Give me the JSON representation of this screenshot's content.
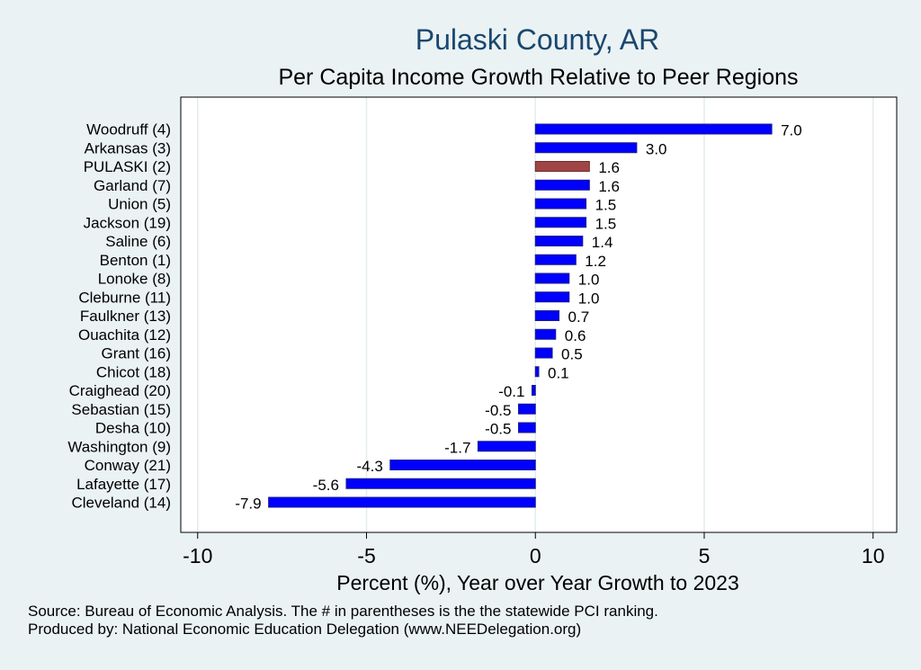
{
  "chart_data": {
    "type": "bar",
    "orientation": "horizontal",
    "title": "Pulaski County, AR",
    "subtitle": "Per Capita Income Growth Relative to Peer Regions",
    "xlabel": "Percent (%), Year over Year Growth to 2023",
    "ylabel": "",
    "xlim": [
      -10.5,
      10.7
    ],
    "xticks": [
      -10,
      -5,
      0,
      5,
      10
    ],
    "xtick_labels": [
      "-10",
      "-5",
      "0",
      "5",
      "10"
    ],
    "grid": true,
    "legend": "none",
    "categories": [
      "Woodruff  (4)",
      "Arkansas  (3)",
      "PULASKI  (2)",
      "Garland  (7)",
      "Union  (5)",
      "Jackson (19)",
      "Saline  (6)",
      "Benton  (1)",
      "Lonoke  (8)",
      "Cleburne (11)",
      "Faulkner (13)",
      "Ouachita (12)",
      "Grant (16)",
      "Chicot (18)",
      "Craighead (20)",
      "Sebastian (15)",
      "Desha (10)",
      "Washington  (9)",
      "Conway (21)",
      "Lafayette (17)",
      "Cleveland (14)"
    ],
    "values": [
      7.0,
      3.0,
      1.6,
      1.6,
      1.5,
      1.5,
      1.4,
      1.2,
      1.0,
      1.0,
      0.7,
      0.6,
      0.5,
      0.1,
      -0.1,
      -0.5,
      -0.5,
      -1.7,
      -4.3,
      -5.6,
      -7.9
    ],
    "value_labels": [
      "7.0",
      "3.0",
      "1.6",
      "1.6",
      "1.5",
      "1.5",
      "1.4",
      "1.2",
      "1.0",
      "1.0",
      "0.7",
      "0.6",
      "0.5",
      "0.1",
      "-0.1",
      "-0.5",
      "-0.5",
      "-1.7",
      "-4.3",
      "-5.6",
      "-7.9"
    ],
    "highlight_index": 2,
    "colors": {
      "bar": "#0000ff",
      "bar_edge": "#1a1a8c",
      "highlight": "#a04545",
      "grid": "#e3ecee",
      "plot_bg": "#ffffff",
      "title": "#1a476f"
    }
  },
  "footer": {
    "source": "Source: Bureau of Economic Analysis. The # in parentheses is the the statewide PCI ranking.",
    "produced_by": "Produced by: National Economic Education Delegation (www.NEEDelegation.org)"
  }
}
